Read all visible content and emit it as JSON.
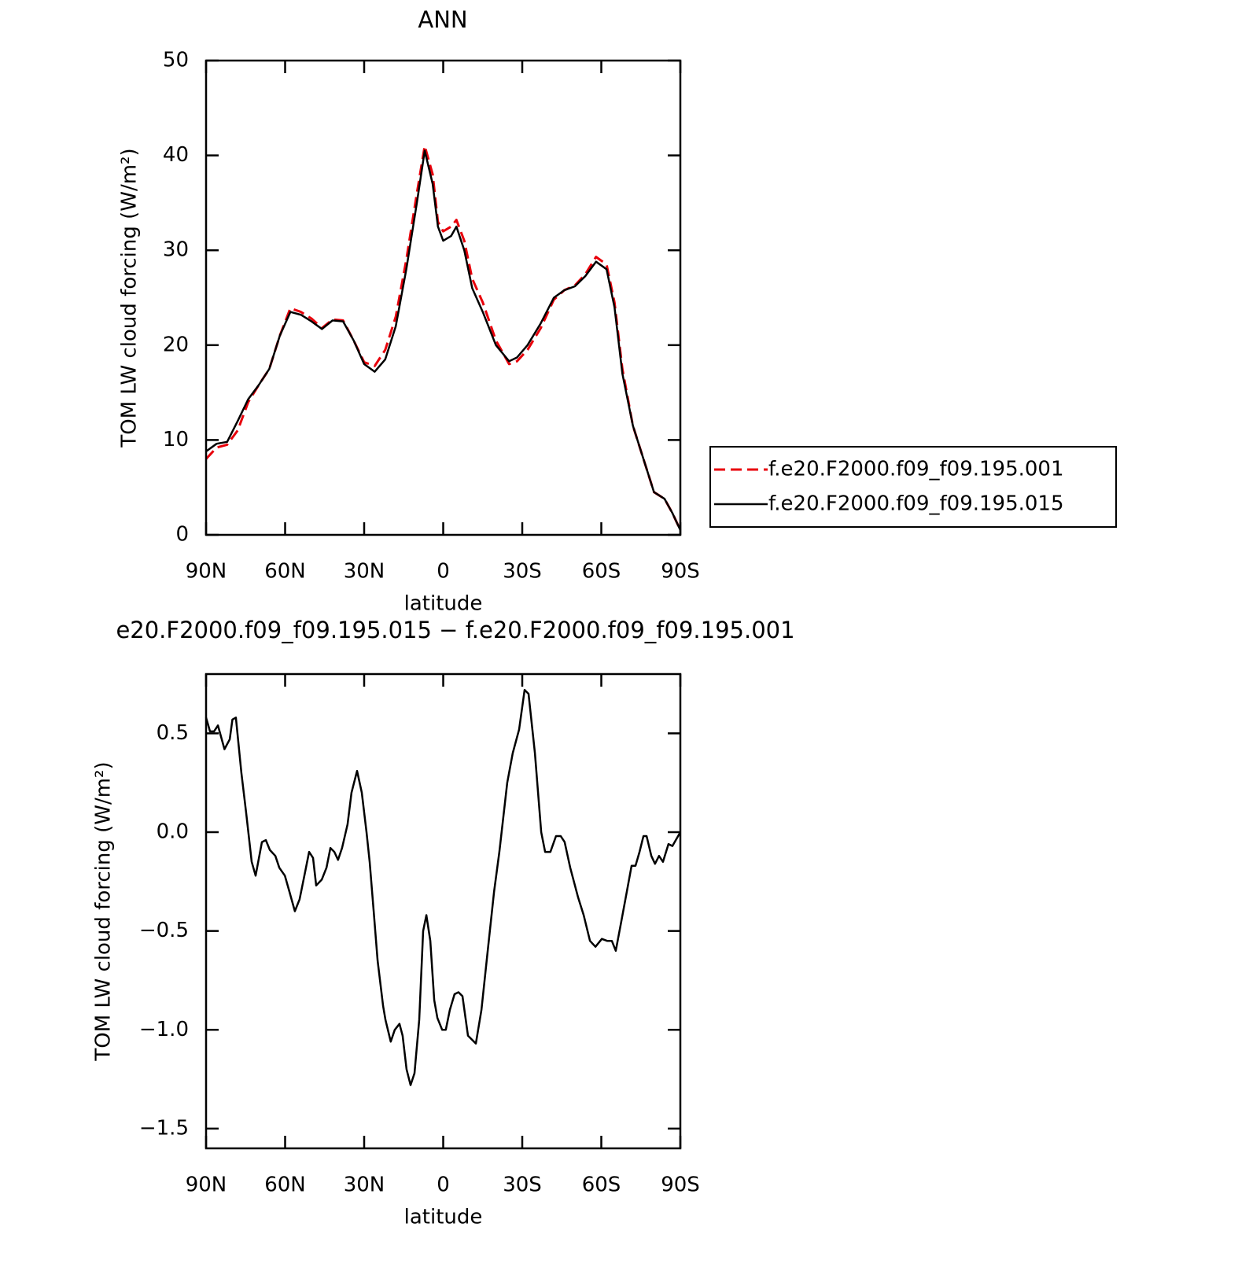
{
  "chart_data": [
    {
      "type": "line",
      "title": "ANN",
      "xlabel": "latitude",
      "ylabel": "TOM LW cloud forcing (W/m²)",
      "xlim": [
        90,
        -90
      ],
      "xticks": [
        {
          "value": 90,
          "label": "90N"
        },
        {
          "value": 60,
          "label": "60N"
        },
        {
          "value": 30,
          "label": "30N"
        },
        0,
        {
          "value": -30,
          "label": "30S"
        },
        {
          "value": -60,
          "label": "60S"
        },
        {
          "value": -90,
          "label": "90S"
        }
      ],
      "ylim": [
        0,
        50
      ],
      "yticks": [
        0,
        10,
        20,
        30,
        40,
        50
      ],
      "legend": "outside right",
      "x": [
        90,
        86,
        82,
        78,
        74,
        70,
        66,
        62,
        58,
        54,
        50,
        46,
        42,
        38,
        34,
        30,
        26,
        22,
        18,
        14,
        10,
        7,
        4,
        2,
        0,
        -3,
        -5,
        -8,
        -11,
        -15,
        -20,
        -25,
        -28,
        -32,
        -37,
        -42,
        -46,
        -50,
        -54,
        -58,
        -62,
        -65,
        -68,
        -72,
        -76,
        -80,
        -84,
        -87,
        -90
      ],
      "series": [
        {
          "name": "f.e20.F2000.f09_f09.195.001",
          "color": "#e8000b",
          "dash": true,
          "values": [
            8.0,
            9.2,
            9.5,
            11,
            14,
            15.8,
            17.5,
            21,
            23.9,
            23.5,
            22.8,
            21.8,
            22.7,
            22.6,
            20.5,
            18.2,
            17.8,
            19.5,
            23,
            29,
            36,
            41,
            38,
            33,
            32,
            32.5,
            33.2,
            31,
            27,
            24.5,
            20.5,
            18,
            18.3,
            19.5,
            21.8,
            24.8,
            25.8,
            26.3,
            27.5,
            29.3,
            28.5,
            24.5,
            17.5,
            11.5,
            8,
            4.5,
            3.8,
            2.3,
            0.5
          ]
        },
        {
          "name": "f.e20.F2000.f09_f09.195.015",
          "color": "#000000",
          "dash": false,
          "values": [
            8.8,
            9.6,
            9.8,
            12,
            14.3,
            15.8,
            17.5,
            21,
            23.5,
            23.2,
            22.5,
            21.7,
            22.6,
            22.5,
            20.5,
            18,
            17.2,
            18.5,
            22,
            28,
            35,
            40.5,
            37,
            32.5,
            31,
            31.5,
            32.5,
            30,
            26,
            23.5,
            20,
            18.3,
            18.7,
            20,
            22.3,
            25,
            25.8,
            26.2,
            27.3,
            28.8,
            28,
            24,
            17,
            11.5,
            8,
            4.5,
            3.8,
            2.3,
            0.5
          ]
        }
      ]
    },
    {
      "type": "line",
      "title": "e20.F2000.f09_f09.195.015 − f.e20.F2000.f09_f09.195.001",
      "xlabel": "latitude",
      "ylabel": "TOM LW cloud forcing (W/m²)",
      "xlim": [
        90,
        -90
      ],
      "xticks": [
        {
          "value": 90,
          "label": "90N"
        },
        {
          "value": 60,
          "label": "60N"
        },
        {
          "value": 30,
          "label": "30N"
        },
        0,
        {
          "value": -30,
          "label": "30S"
        },
        {
          "value": -60,
          "label": "60S"
        },
        {
          "value": -90,
          "label": "90S"
        }
      ],
      "ylim": [
        -1.6,
        0.8
      ],
      "yticks": [
        {
          "value": -1.5,
          "label": "−1.5"
        },
        {
          "value": -1.0,
          "label": "−1.0"
        },
        {
          "value": -0.5,
          "label": "−0.5"
        },
        {
          "value": 0,
          "label": "0.0"
        },
        0.5
      ],
      "x": [
        90,
        88.5,
        87,
        85.5,
        83,
        81,
        80,
        78.7,
        76.6,
        74.8,
        72.7,
        71.2,
        68.8,
        67.3,
        65.8,
        63.7,
        62.2,
        60.1,
        58.4,
        56.3,
        54.5,
        52.4,
        50.9,
        49.4,
        48.2,
        46.1,
        44.3,
        42.8,
        41.3,
        39.9,
        38.4,
        36.3,
        34.8,
        32.7,
        30.9,
        29.1,
        27.9,
        26.4,
        24.9,
        22.8,
        21.9,
        19.9,
        18.4,
        16.6,
        15.4,
        13.9,
        12.4,
        10.9,
        9.1,
        7.6,
        6.4,
        4.9,
        3.4,
        2.2,
        0.4,
        -1.0,
        -2.5,
        -4.3,
        -5.8,
        -7.3,
        -9.4,
        -10.9,
        -12.4,
        -14.5,
        -16.9,
        -19.3,
        -21.3,
        -24.3,
        -26.4,
        -28.8,
        -30.9,
        -32.4,
        -34.8,
        -37.2,
        -38.7,
        -40.7,
        -42.8,
        -44.6,
        -46.1,
        -48.2,
        -51.2,
        -53.3,
        -55.7,
        -57.8,
        -60.2,
        -62.2,
        -64.0,
        -65.5,
        -67.6,
        -69.7,
        -71.5,
        -73.0,
        -74.5,
        -76.0,
        -77.2,
        -79.0,
        -80.4,
        -81.9,
        -83.4,
        -85.5,
        -87.0,
        -90
      ],
      "series": [
        {
          "color": "#000000",
          "dash": false,
          "values": [
            0.58,
            0.51,
            0.51,
            0.54,
            0.42,
            0.47,
            0.57,
            0.58,
            0.3,
            0.1,
            -0.15,
            -0.22,
            -0.05,
            -0.04,
            -0.09,
            -0.12,
            -0.18,
            -0.22,
            -0.3,
            -0.4,
            -0.34,
            -0.2,
            -0.1,
            -0.13,
            -0.27,
            -0.24,
            -0.18,
            -0.08,
            -0.1,
            -0.14,
            -0.08,
            0.04,
            0.2,
            0.31,
            0.2,
            0.0,
            -0.15,
            -0.4,
            -0.65,
            -0.88,
            -0.95,
            -1.06,
            -1.0,
            -0.97,
            -1.03,
            -1.2,
            -1.28,
            -1.22,
            -0.95,
            -0.5,
            -0.42,
            -0.55,
            -0.85,
            -0.94,
            -1.0,
            -1.0,
            -0.9,
            -0.82,
            -0.81,
            -0.83,
            -1.03,
            -1.05,
            -1.07,
            -0.9,
            -0.6,
            -0.3,
            -0.1,
            0.25,
            0.4,
            0.52,
            0.72,
            0.7,
            0.4,
            0.0,
            -0.1,
            -0.1,
            -0.02,
            -0.02,
            -0.05,
            -0.18,
            -0.33,
            -0.42,
            -0.55,
            -0.58,
            -0.54,
            -0.55,
            -0.55,
            -0.6,
            -0.45,
            -0.3,
            -0.17,
            -0.17,
            -0.1,
            -0.02,
            -0.02,
            -0.12,
            -0.16,
            -0.12,
            -0.15,
            -0.06,
            -0.07,
            0.0
          ]
        }
      ]
    }
  ]
}
